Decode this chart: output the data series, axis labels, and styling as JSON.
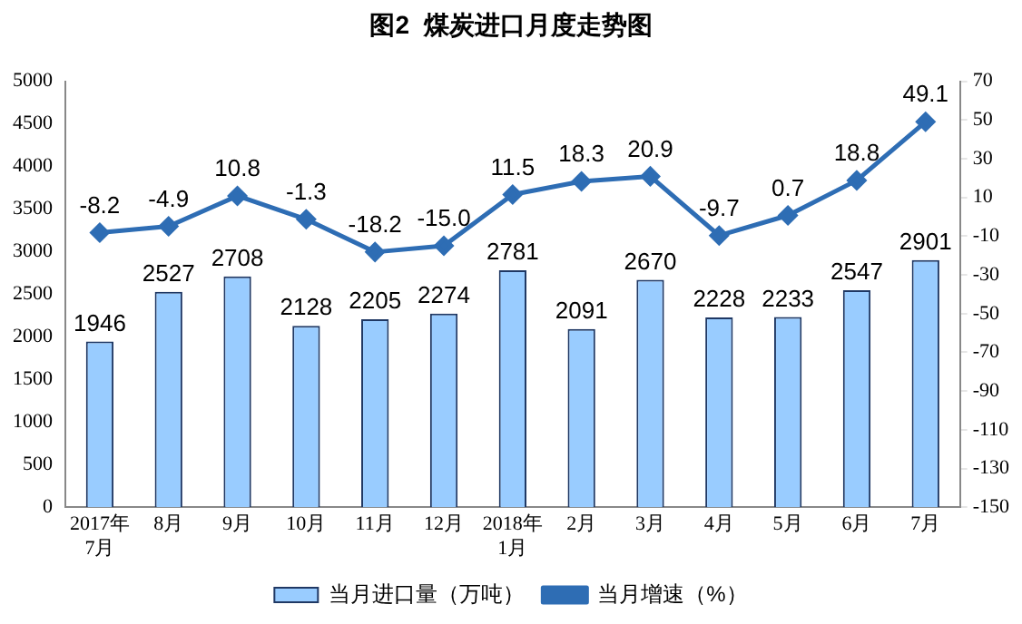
{
  "chart_data": {
    "type": "bar",
    "title": "图2  煤炭进口月度走势图",
    "categories": [
      "2017年\n7月",
      "8月",
      "9月",
      "10月",
      "11月",
      "12月",
      "2018年\n1月",
      "2月",
      "3月",
      "4月",
      "5月",
      "6月",
      "7月"
    ],
    "series": [
      {
        "name": "当月进口量（万吨）",
        "color": "#99ccff",
        "values": [
          1946,
          2527,
          2708,
          2128,
          2205,
          2274,
          2781,
          2091,
          2670,
          2228,
          2233,
          2547,
          2901
        ]
      },
      {
        "name": "当月增速（%）",
        "type": "line",
        "axis": "y2",
        "color": "#2e6db4",
        "marker": "diamond",
        "values": [
          -8.2,
          -4.9,
          10.8,
          -1.3,
          -18.2,
          -15.0,
          11.5,
          18.3,
          20.9,
          -9.7,
          0.7,
          18.8,
          49.1
        ],
        "value_labels": [
          "-8.2",
          "-4.9",
          "10.8",
          "-1.3",
          "-18.2",
          "-15.0",
          "11.5",
          "18.3",
          "20.9",
          "-9.7",
          "0.7",
          "18.8",
          "49.1"
        ]
      }
    ],
    "ylim": [
      0,
      5000
    ],
    "yticks": [
      0,
      500,
      1000,
      1500,
      2000,
      2500,
      3000,
      3500,
      4000,
      4500,
      5000
    ],
    "y2lim": [
      -150,
      70
    ],
    "y2ticks": [
      -150,
      -130,
      -110,
      -90,
      -70,
      -50,
      -30,
      -10,
      10,
      30,
      50,
      70
    ],
    "data_labels": true,
    "grid": false,
    "legend": "bottom"
  }
}
